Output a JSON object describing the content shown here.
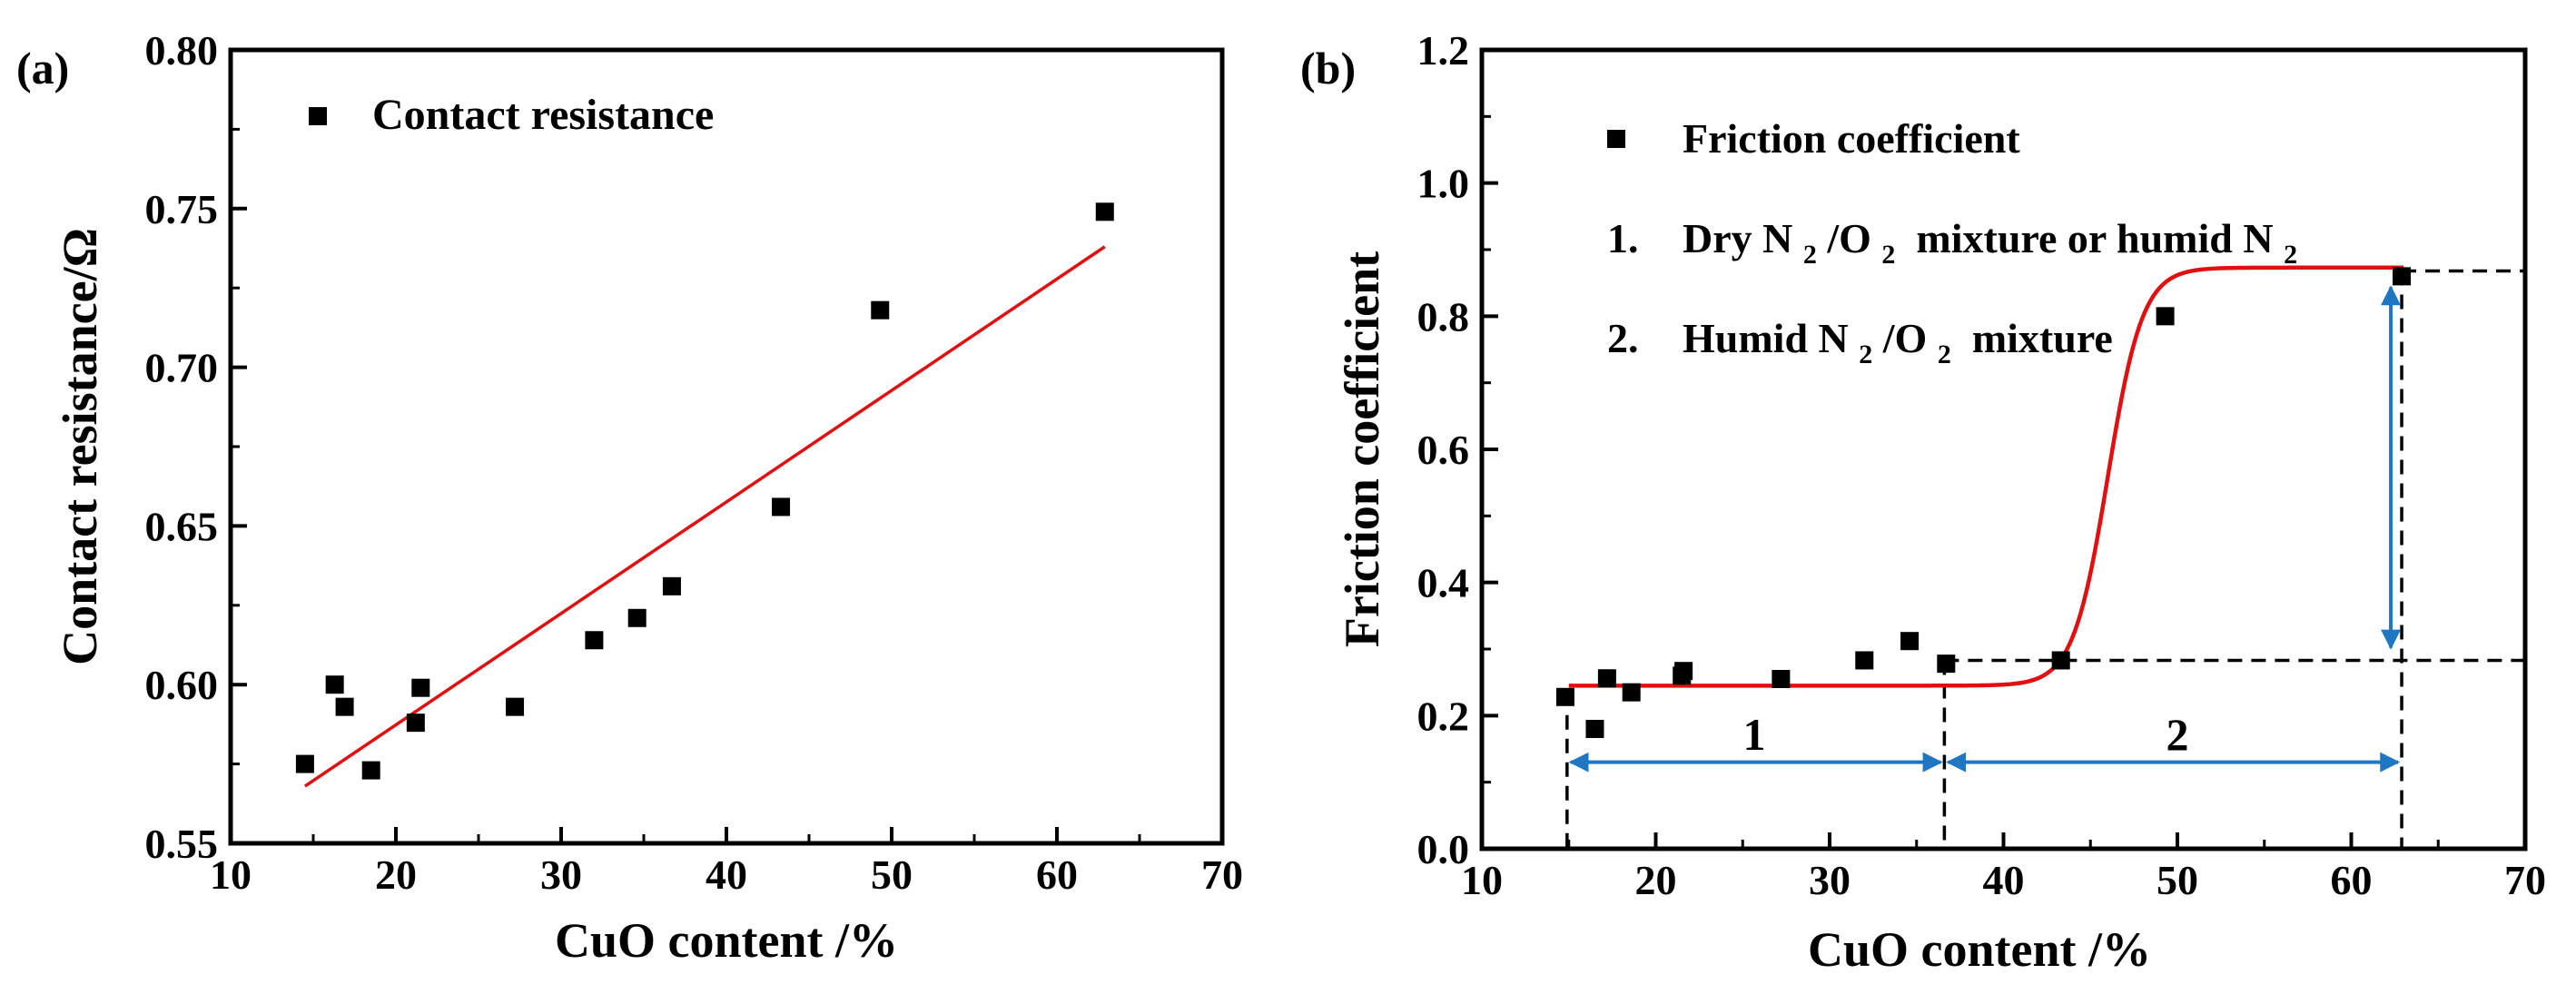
{
  "chart_data": [
    {
      "type": "scatter",
      "panel_label": "(a)",
      "xlabel": "CuO content /%",
      "ylabel": "Contact resistance/Ω",
      "xlim": [
        10,
        70
      ],
      "ylim": [
        0.55,
        0.8
      ],
      "xticks": [
        10,
        20,
        30,
        40,
        50,
        60,
        70
      ],
      "yticks": [
        0.55,
        0.6,
        0.65,
        0.7,
        0.75,
        0.8
      ],
      "xtick_labels": [
        "10",
        "20",
        "30",
        "40",
        "50",
        "60",
        "70"
      ],
      "ytick_labels": [
        "0.55",
        "0.60",
        "0.65",
        "0.70",
        "0.75",
        "0.80"
      ],
      "legend": "Contact resistance",
      "series": [
        {
          "name": "Contact resistance",
          "marker": "square",
          "x": [
            14.5,
            16.3,
            16.9,
            18.5,
            21.2,
            21.5,
            27.2,
            32.0,
            34.6,
            36.7,
            43.3,
            49.3,
            62.9
          ],
          "y": [
            0.575,
            0.6,
            0.593,
            0.573,
            0.588,
            0.599,
            0.593,
            0.614,
            0.621,
            0.631,
            0.656,
            0.718,
            0.749
          ]
        }
      ],
      "fit_line": {
        "color": "#e01010",
        "x": [
          14.5,
          62.9
        ],
        "y": [
          0.568,
          0.738
        ]
      }
    },
    {
      "type": "scatter",
      "panel_label": "(b)",
      "xlabel": "CuO content /%",
      "ylabel": "Friction coefficient",
      "xlim": [
        10,
        70
      ],
      "ylim": [
        0.0,
        1.2
      ],
      "xticks": [
        10,
        20,
        30,
        40,
        50,
        60,
        70
      ],
      "yticks": [
        0.0,
        0.2,
        0.4,
        0.6,
        0.8,
        1.0,
        1.2
      ],
      "xtick_labels": [
        "10",
        "20",
        "30",
        "40",
        "50",
        "60",
        "70"
      ],
      "ytick_labels": [
        "0.0",
        "0.2",
        "0.4",
        "0.6",
        "0.8",
        "1.0",
        "1.2"
      ],
      "legend": "Friction coefficient",
      "annotations": {
        "item1_num": "1.",
        "item1_a": "Dry N",
        "item1_sub1": "2",
        "item1_b": "/O",
        "item1_sub2": "2",
        "item1_c": " mixture or humid N",
        "item1_sub3": "2",
        "item2_num": "2.",
        "item2_a": "Humid N",
        "item2_sub1": "2",
        "item2_b": "/O",
        "item2_sub2": "2",
        "item2_c": " mixture",
        "region1": "1",
        "region2": "2"
      },
      "series": [
        {
          "name": "Friction coefficient",
          "marker": "square",
          "x": [
            14.8,
            16.5,
            17.2,
            18.6,
            21.5,
            21.6,
            27.2,
            32.0,
            34.6,
            36.7,
            43.3,
            49.3,
            62.9
          ],
          "y": [
            0.228,
            0.18,
            0.256,
            0.235,
            0.26,
            0.267,
            0.255,
            0.283,
            0.312,
            0.278,
            0.283,
            0.8,
            0.86
          ]
        }
      ],
      "sigmoid_fit": {
        "color": "#e01010",
        "low": 0.245,
        "high": 0.873,
        "center": 46.0,
        "width": 1.0,
        "x_range": [
          15.0,
          63.0
        ]
      },
      "guide_lines": {
        "y_low": 0.283,
        "y_high": 0.868,
        "x_start": 14.9,
        "x_split": 36.6,
        "x_end": 62.9
      },
      "arrow_color": "#1f77c4"
    }
  ]
}
